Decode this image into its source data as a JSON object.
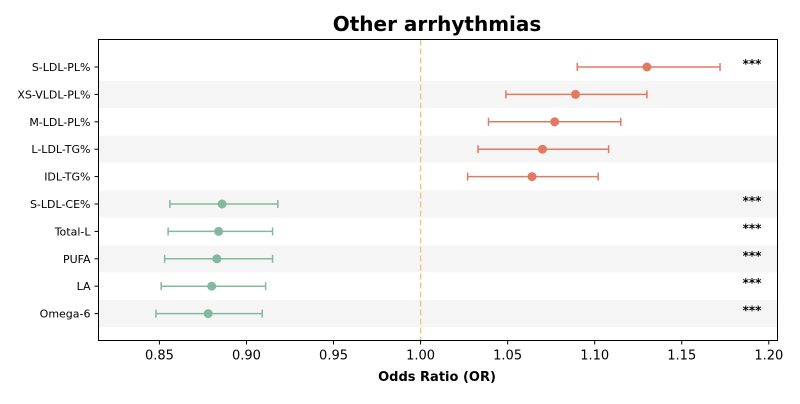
{
  "chart_data": {
    "type": "forest",
    "title": "Other arrhythmias",
    "xlabel": "Odds Ratio (OR)",
    "xlim": [
      0.815,
      1.205
    ],
    "x_ticks": [
      "0.85",
      "0.90",
      "0.95",
      "1.00",
      "1.05",
      "1.10",
      "1.15",
      "1.20"
    ],
    "reference_line": 1.0,
    "colors": {
      "positive": "#e07b62",
      "negative": "#85b8a0",
      "reference": "#f5c77e",
      "band": "#f5f5f5"
    },
    "rows": [
      {
        "label": "S-LDL-PL%",
        "or": 1.13,
        "lower": 1.09,
        "upper": 1.172,
        "sig": "***"
      },
      {
        "label": "XS-VLDL-PL%",
        "or": 1.089,
        "lower": 1.049,
        "upper": 1.13,
        "sig": ""
      },
      {
        "label": "M-LDL-PL%",
        "or": 1.077,
        "lower": 1.039,
        "upper": 1.115,
        "sig": ""
      },
      {
        "label": "L-LDL-TG%",
        "or": 1.07,
        "lower": 1.033,
        "upper": 1.108,
        "sig": ""
      },
      {
        "label": "IDL-TG%",
        "or": 1.064,
        "lower": 1.027,
        "upper": 1.102,
        "sig": ""
      },
      {
        "label": "S-LDL-CE%",
        "or": 0.886,
        "lower": 0.856,
        "upper": 0.918,
        "sig": "***"
      },
      {
        "label": "Total-L",
        "or": 0.884,
        "lower": 0.855,
        "upper": 0.915,
        "sig": "***"
      },
      {
        "label": "PUFA",
        "or": 0.883,
        "lower": 0.853,
        "upper": 0.915,
        "sig": "***"
      },
      {
        "label": "LA",
        "or": 0.88,
        "lower": 0.851,
        "upper": 0.911,
        "sig": "***"
      },
      {
        "label": "Omega-6",
        "or": 0.878,
        "lower": 0.848,
        "upper": 0.909,
        "sig": "***"
      }
    ]
  }
}
